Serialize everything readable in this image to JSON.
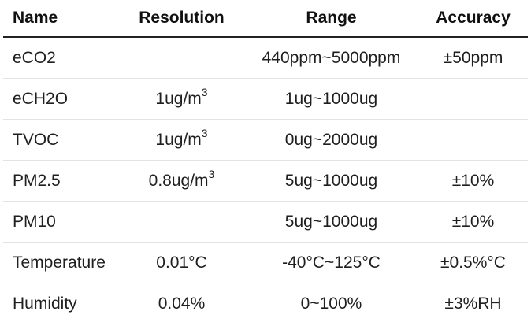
{
  "table": {
    "headers": [
      "Name",
      "Resolution",
      "Range",
      "Accuracy"
    ],
    "rows": [
      {
        "name": "eCO2",
        "resolution": "",
        "resolution_exp": "",
        "range": "440ppm~5000ppm",
        "accuracy": "±50ppm"
      },
      {
        "name": "eCH2O",
        "resolution": "1ug/m",
        "resolution_exp": "3",
        "range": "1ug~1000ug",
        "accuracy": ""
      },
      {
        "name": "TVOC",
        "resolution": "1ug/m",
        "resolution_exp": "3",
        "range": "0ug~2000ug",
        "accuracy": ""
      },
      {
        "name": "PM2.5",
        "resolution": "0.8ug/m",
        "resolution_exp": "3",
        "range": "5ug~1000ug",
        "accuracy": "±10%"
      },
      {
        "name": "PM10",
        "resolution": "",
        "resolution_exp": "",
        "range": "5ug~1000ug",
        "accuracy": "±10%"
      },
      {
        "name": "Temperature",
        "resolution": "0.01°C",
        "resolution_exp": "",
        "range": "-40°C~125°C",
        "accuracy": "±0.5%°C"
      },
      {
        "name": "Humidity",
        "resolution": "0.04%",
        "resolution_exp": "",
        "range": "0~100%",
        "accuracy": "±3%RH"
      }
    ]
  }
}
